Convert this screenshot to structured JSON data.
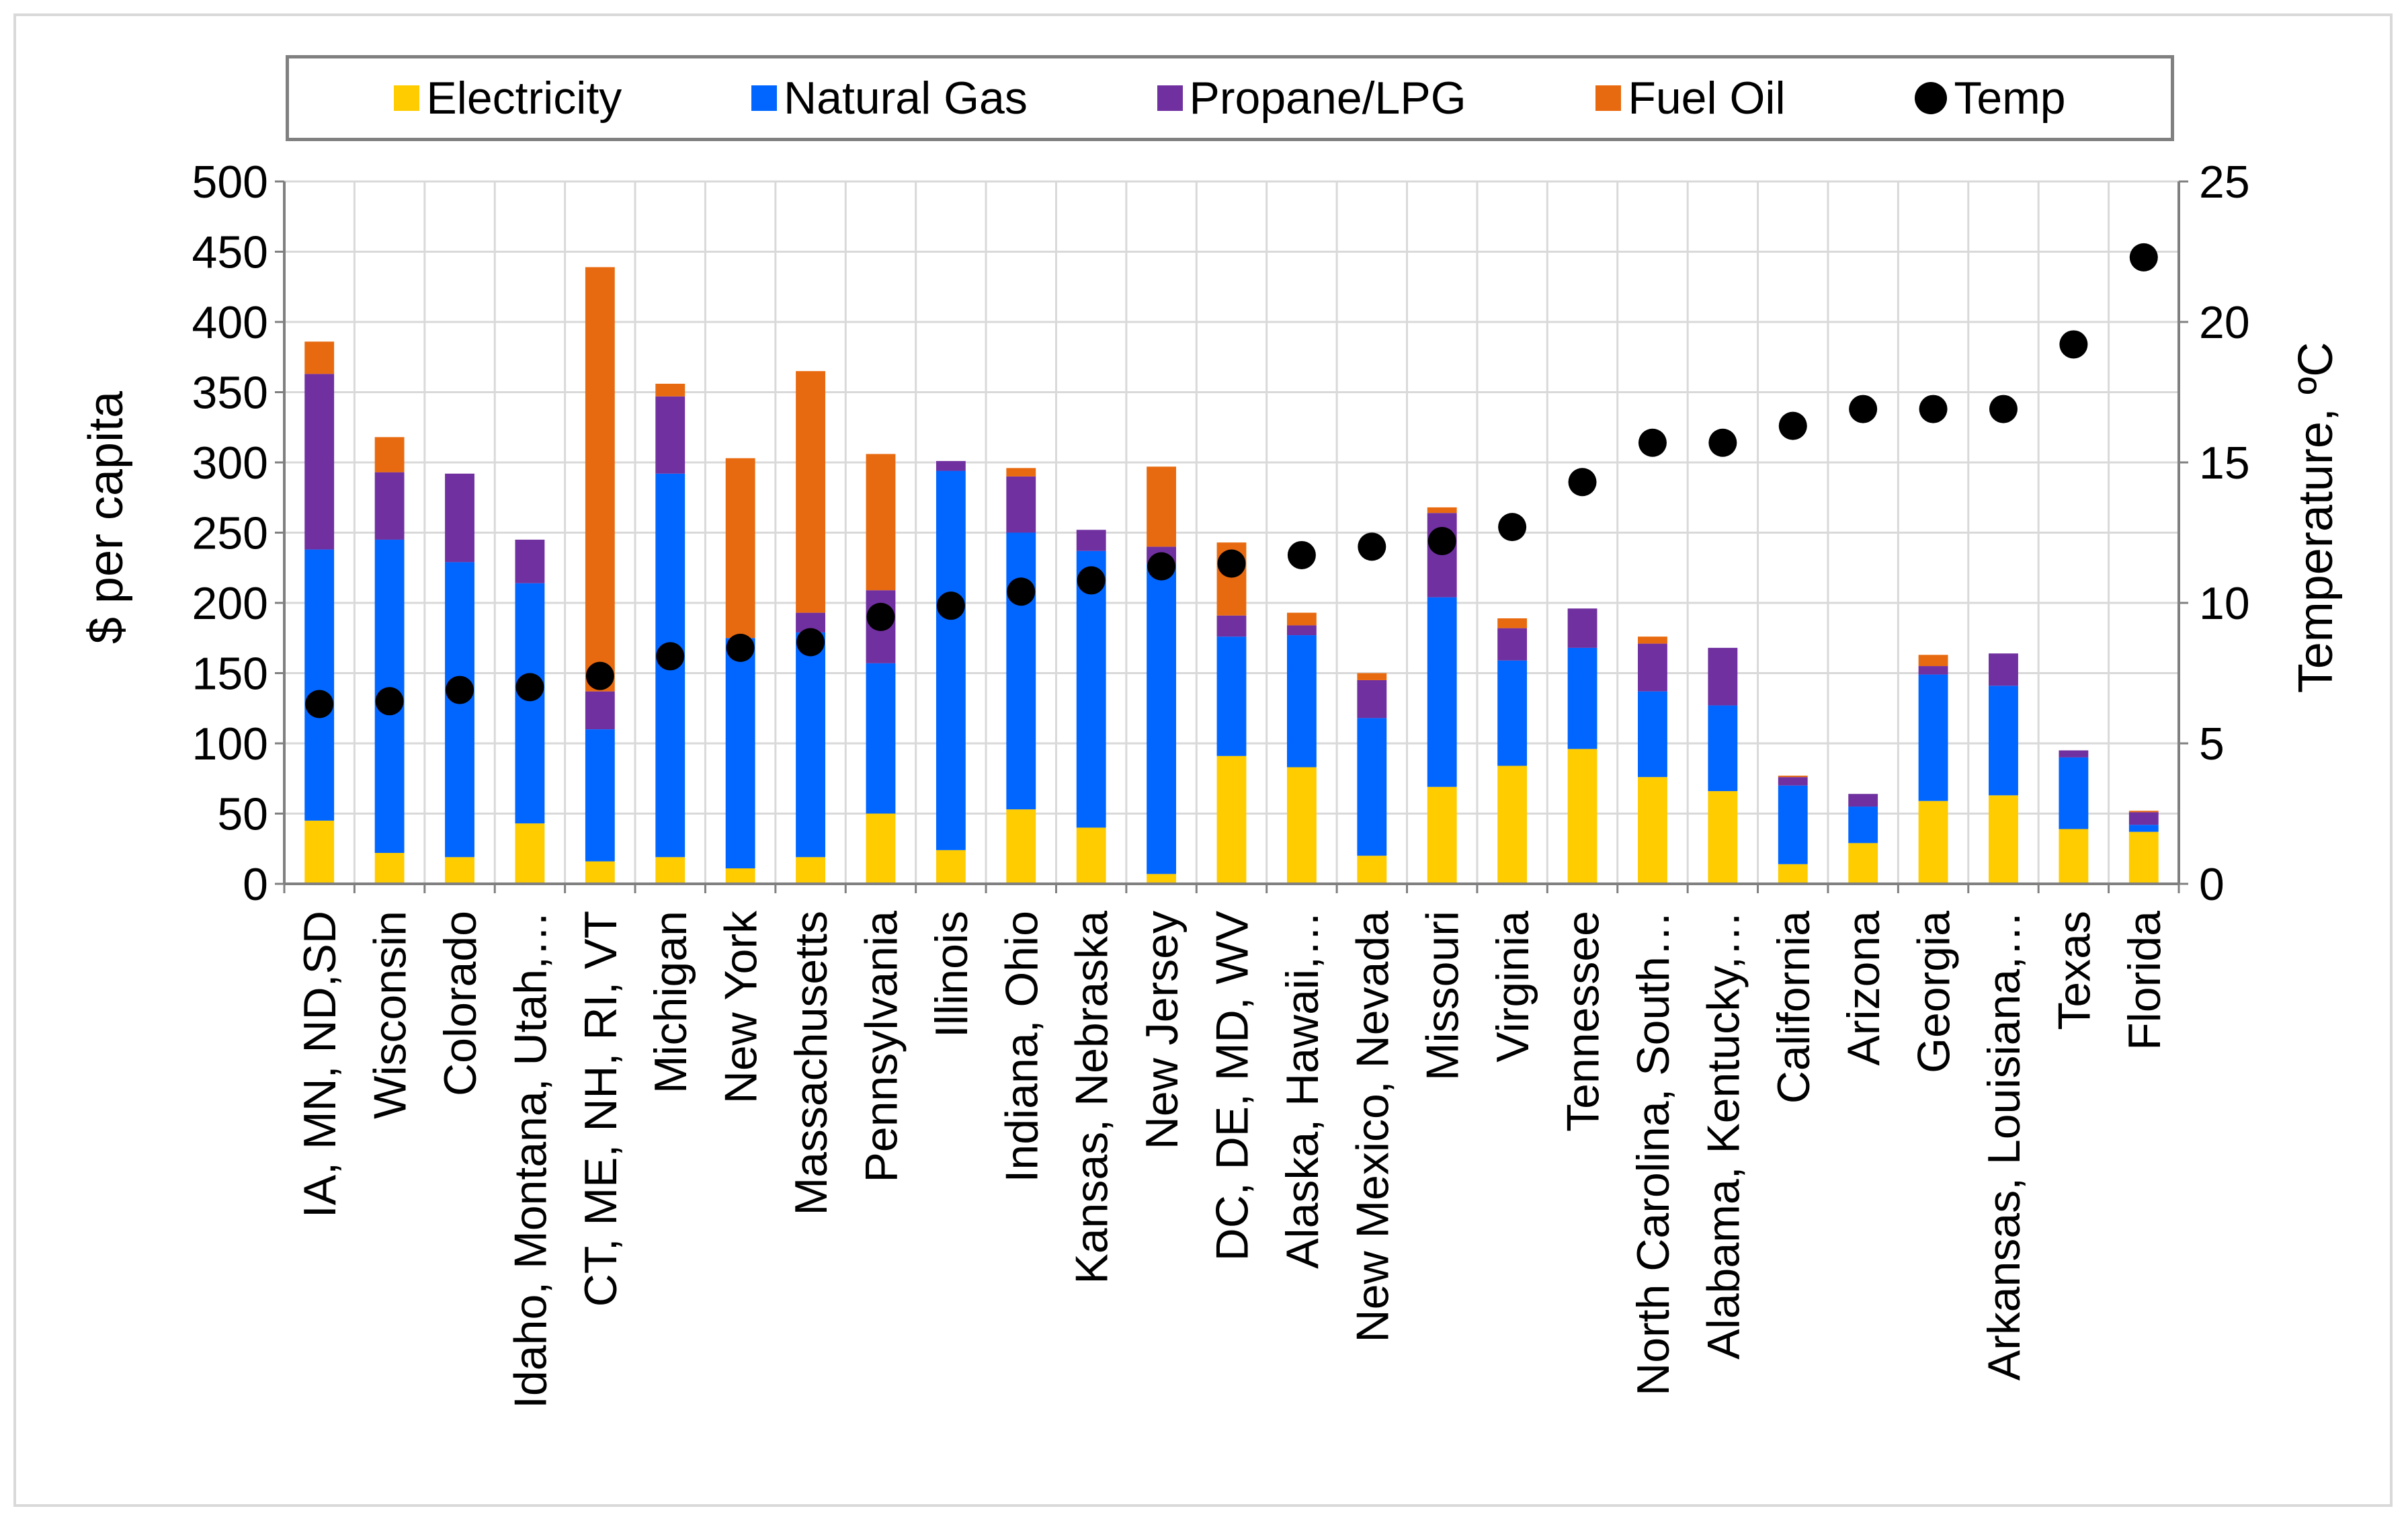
{
  "chart_data": {
    "type": "bar",
    "stacked": true,
    "ylabel": "$ per capita",
    "y2label": "Temperature, ºC",
    "ylim": [
      0,
      500
    ],
    "y2lim": [
      0,
      25
    ],
    "yticks": [
      "0",
      "50",
      "100",
      "150",
      "200",
      "250",
      "300",
      "350",
      "400",
      "450",
      "500"
    ],
    "y2ticks": [
      "0",
      "5",
      "10",
      "15",
      "20",
      "25"
    ],
    "categories": [
      "IA, MN, ND,SD",
      "Wisconsin",
      "Colorado",
      "Idaho, Montana, Utah,…",
      "CT, ME, NH, RI, VT",
      "Michigan",
      "New York",
      "Massachusetts",
      "Pennsylvania",
      "Illinois",
      "Indiana, Ohio",
      "Kansas, Nebraska",
      "New Jersey",
      "DC, DE, MD, WV",
      "Alaska, Hawaii,…",
      "New Mexico, Nevada",
      "Missouri",
      "Virginia",
      "Tennessee",
      "North Carolina, South…",
      "Alabama, Kentucky,…",
      "California",
      "Arizona",
      "Georgia",
      "Arkansas, Louisiana,…",
      "Texas",
      "Florida"
    ],
    "series": [
      {
        "name": "Electricity",
        "color": "#FFCC00",
        "values": [
          45,
          22,
          19,
          43,
          16,
          19,
          11,
          19,
          50,
          24,
          53,
          40,
          7,
          91,
          83,
          20,
          69,
          84,
          96,
          76,
          66,
          14,
          29,
          59,
          63,
          39,
          37
        ]
      },
      {
        "name": "Natural Gas",
        "color": "#0066FF",
        "values": [
          193,
          223,
          210,
          171,
          94,
          273,
          164,
          160,
          107,
          270,
          197,
          197,
          221,
          85,
          94,
          98,
          135,
          75,
          72,
          61,
          61,
          56,
          26,
          90,
          78,
          51,
          5
        ]
      },
      {
        "name": "Propane/LPG",
        "color": "#7030A0",
        "values": [
          125,
          48,
          63,
          31,
          27,
          55,
          0,
          14,
          52,
          7,
          40,
          15,
          12,
          15,
          7,
          27,
          60,
          23,
          28,
          34,
          41,
          6,
          9,
          6,
          23,
          5,
          9
        ]
      },
      {
        "name": "Fuel Oil",
        "color": "#E86A10",
        "values": [
          23,
          25,
          0,
          0,
          302,
          9,
          128,
          172,
          97,
          0,
          6,
          0,
          57,
          52,
          9,
          5,
          4,
          7,
          0,
          5,
          0,
          1,
          0,
          8,
          0,
          0,
          1
        ]
      }
    ],
    "temp": {
      "name": "Temp",
      "color": "#000000",
      "values": [
        6.4,
        6.5,
        6.9,
        7.0,
        7.4,
        8.1,
        8.4,
        8.6,
        9.5,
        9.9,
        10.4,
        10.8,
        11.3,
        11.4,
        11.7,
        12.0,
        12.2,
        12.7,
        14.3,
        15.7,
        15.7,
        16.3,
        16.9,
        16.9,
        16.9,
        19.2,
        22.3
      ]
    }
  },
  "legend": {
    "electricity": "Electricity",
    "natural_gas": "Natural Gas",
    "propane": "Propane/LPG",
    "fuel_oil": "Fuel Oil",
    "temp": "Temp"
  }
}
